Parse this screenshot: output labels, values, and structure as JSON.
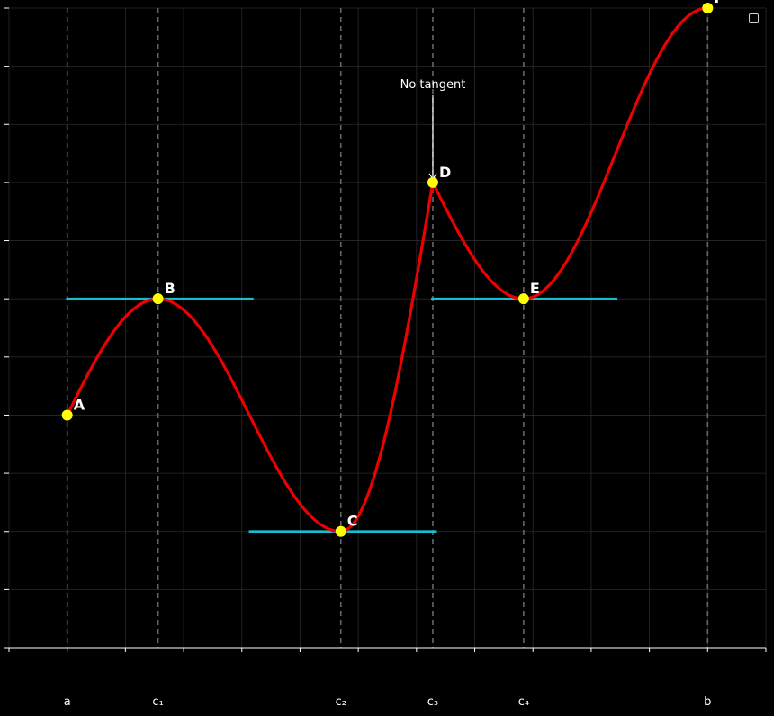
{
  "chart_data": {
    "type": "line",
    "xlim": [
      0,
      13
    ],
    "ylim": [
      -1,
      10
    ],
    "grid": true,
    "curve_color": "#ee0000",
    "tangent_color": "#17becf",
    "point_color": "#ffff00",
    "guide_color": "#666666",
    "points": [
      {
        "label": "A",
        "x": 1.0,
        "y": 3.0
      },
      {
        "label": "B",
        "x": 2.56,
        "y": 5.0
      },
      {
        "label": "C",
        "x": 5.7,
        "y": 1.0
      },
      {
        "label": "D",
        "x": 7.28,
        "y": 7.0
      },
      {
        "label": "E",
        "x": 8.84,
        "y": 5.0
      },
      {
        "label": "F",
        "x": 12.0,
        "y": 10.0
      }
    ],
    "vertical_guides": [
      {
        "x": 1.0,
        "label": "a"
      },
      {
        "x": 2.56,
        "label": "c₁"
      },
      {
        "x": 5.7,
        "label": "c₂"
      },
      {
        "x": 7.28,
        "label": "c₃"
      },
      {
        "x": 8.84,
        "label": "c₄"
      },
      {
        "x": 12.0,
        "label": "b"
      }
    ],
    "tangent_segments": [
      {
        "x1": 0.98,
        "x2": 4.2,
        "y": 5.0
      },
      {
        "x1": 4.12,
        "x2": 7.35,
        "y": 1.0
      },
      {
        "x1": 7.25,
        "x2": 10.45,
        "y": 5.0
      }
    ],
    "annotation": {
      "text": "No tangent",
      "target_label": "D"
    }
  }
}
